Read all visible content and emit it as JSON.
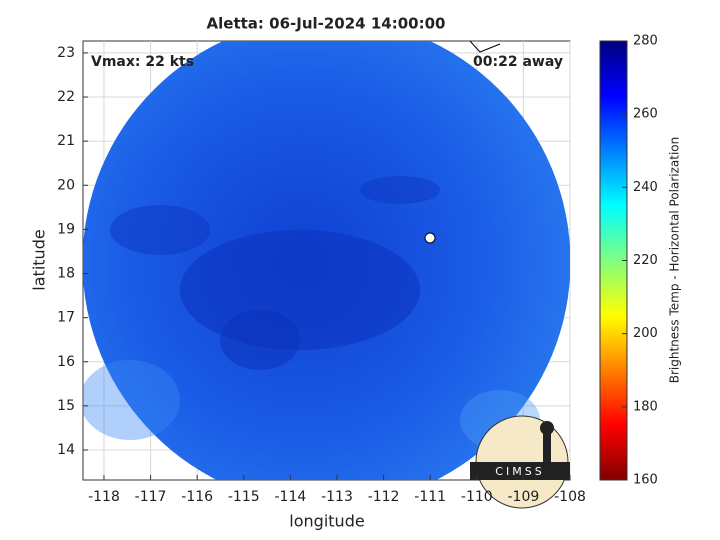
{
  "chart_data": {
    "type": "map",
    "title": "Aletta: 06-Jul-2024 14:00:00",
    "annotations": [
      "Vmax: 22 kts",
      "00:22 away"
    ],
    "x_label": "longitude",
    "y_label": "latitude",
    "xlim": [
      -118.45,
      -108
    ],
    "xticks": [
      -118,
      -117,
      -116,
      -115,
      -114,
      -113,
      -112,
      -111,
      -110,
      -109,
      -108
    ],
    "ylim": [
      13.32,
      23.27
    ],
    "yticks": [
      14,
      15,
      16,
      17,
      18,
      19,
      20,
      21,
      22,
      23
    ],
    "grid": true,
    "colorbar": {
      "label": "Brightness Temp - Horizontal Polarization",
      "lim": [
        160,
        280
      ],
      "ticks": [
        160,
        180,
        200,
        220,
        240,
        260,
        280
      ]
    },
    "logo": "CIMSS"
  }
}
